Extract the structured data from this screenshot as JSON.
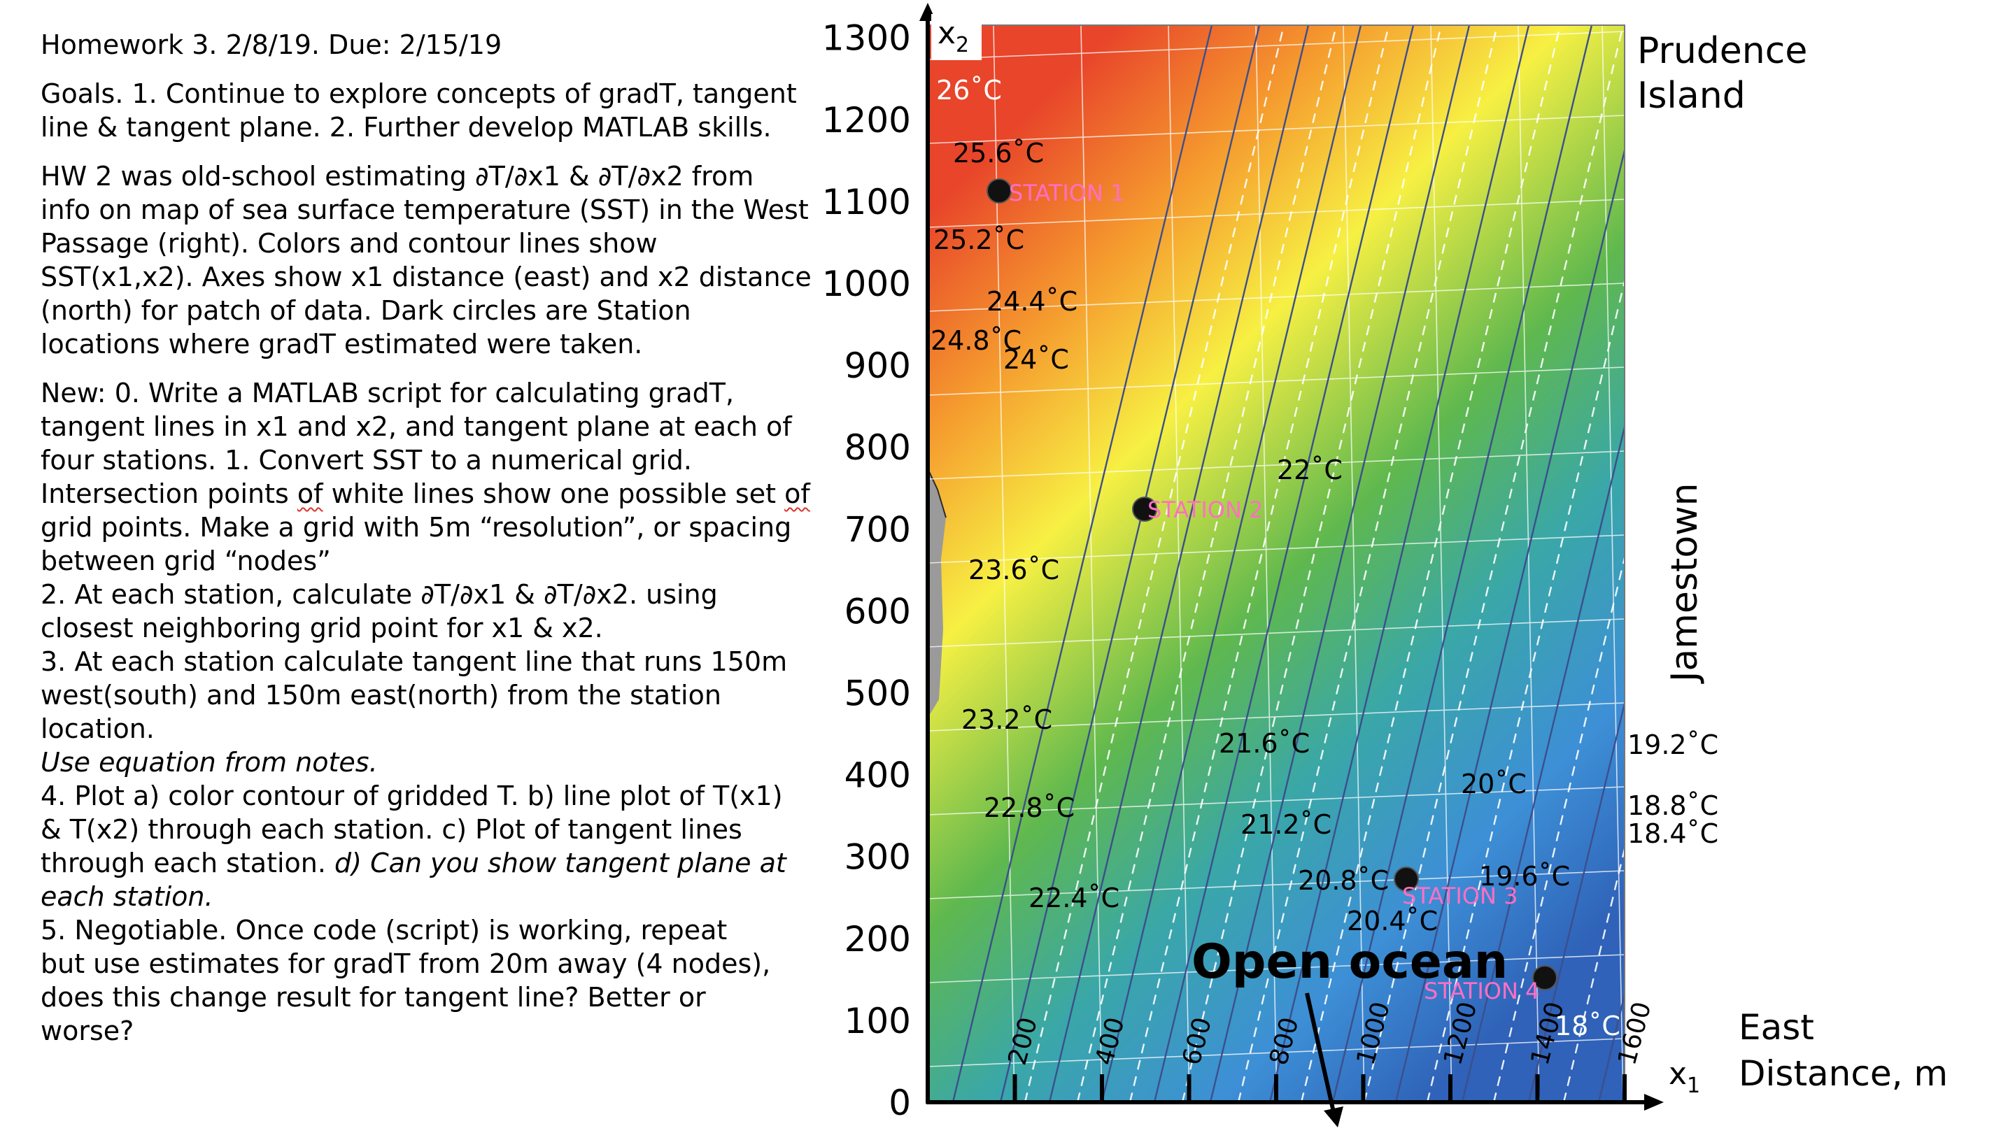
{
  "header": {
    "title": "Homework 3. 2/8/19.  Due: 2/15/19"
  },
  "goals": {
    "line1": "Goals.  1. Continue to explore concepts of gradT, tangent",
    "line2": "line & tangent plane.    2.  Further develop MATLAB skills."
  },
  "hw2_paragraph": [
    "HW 2 was old-school estimating ∂T/∂x1 & ∂T/∂x2 from",
    "info on map of sea surface temperature (SST) in the West",
    "Passage (right).   Colors and contour lines show",
    "SST(x1,x2).  Axes show x1 distance (east) and x2 distance",
    "(north) for patch of data.   Dark circles are Station",
    "locations where gradT estimated were taken."
  ],
  "new_section": {
    "lines": [
      "New:  0. Write a MATLAB script for calculating gradT,",
      "tangent lines in x1 and x2, and tangent plane at each of",
      "four stations.   1. Convert SST to a numerical grid."
    ],
    "intersect_pre": "Intersection points ",
    "intersect_of1": "of",
    "intersect_mid": " white lines show one possible set ",
    "intersect_of2": "of",
    "lines2": [
      "grid points.   Make a grid with 5m “resolution”, or spacing",
      "between grid “nodes”",
      "2. At each station, calculate ∂T/∂x1 & ∂T/∂x2. using",
      "closest neighboring grid point for x1 & x2.",
      "3. At each station calculate tangent line that runs 150m",
      "west(south) and 150m east(north) from the station",
      "location."
    ],
    "italic_line": "Use equation from notes.",
    "item4_a": "4. Plot a) color contour of gridded T.   b) line plot of T(x1)",
    "item4_b": "& T(x2) through each station.  c)  Plot of tangent lines",
    "item4_c_plain": "through each station.   ",
    "item4_c_italic": "d) Can you show tangent plane at",
    "item4_d_italic": "each station.",
    "item5_lines": [
      "5.  Negotiable.  Once code (script) is working,   repeat",
      "but use estimates for gradT from 20m away (4 nodes),",
      "does this change result for tangent line?   Better or",
      "worse?"
    ]
  },
  "map": {
    "x_axis_symbol": "x",
    "x_axis_sub": "1",
    "y_axis_symbol": "x",
    "y_axis_sub": "2",
    "x_axis_label_line1": "East",
    "x_axis_label_line2": "Distance, m",
    "y_ticks": [
      "0",
      "100",
      "200",
      "300",
      "400",
      "500",
      "600",
      "700",
      "800",
      "900",
      "1000",
      "1100",
      "1200",
      "1300"
    ],
    "x_ticks": [
      "200",
      "400",
      "600",
      "800",
      "1000",
      "1200",
      "1400",
      "1600"
    ],
    "island_line1": "Prudence",
    "island_line2": "Island",
    "jamestown": "Jamestown",
    "open_ocean": "Open ocean",
    "stations": [
      "STATION 1",
      "STATION 2",
      "STATION 3",
      "STATION 4"
    ],
    "contour_labels": [
      "26˚C",
      "25.6˚C",
      "25.2˚C",
      "24.4˚C",
      "24.8˚C",
      "24˚C",
      "22˚C",
      "23.6˚C",
      "23.2˚C",
      "21.6˚C",
      "22.8˚C",
      "21.2˚C",
      "22.4˚C",
      "20˚C",
      "20.8˚C",
      "19.6˚C",
      "20.4˚C",
      "18˚C",
      "19.2˚C",
      "18.8˚C",
      "18.4˚C"
    ],
    "colors": {
      "warm": "#e8452a",
      "orange": "#f59a2e",
      "yellow": "#f7f043",
      "green": "#5fb84e",
      "teal": "#3aa7a8",
      "blue": "#3d8fd6",
      "deep_blue": "#2f62b8",
      "station_text": "#ff6fc4",
      "contour": "#3c4f8c"
    }
  }
}
